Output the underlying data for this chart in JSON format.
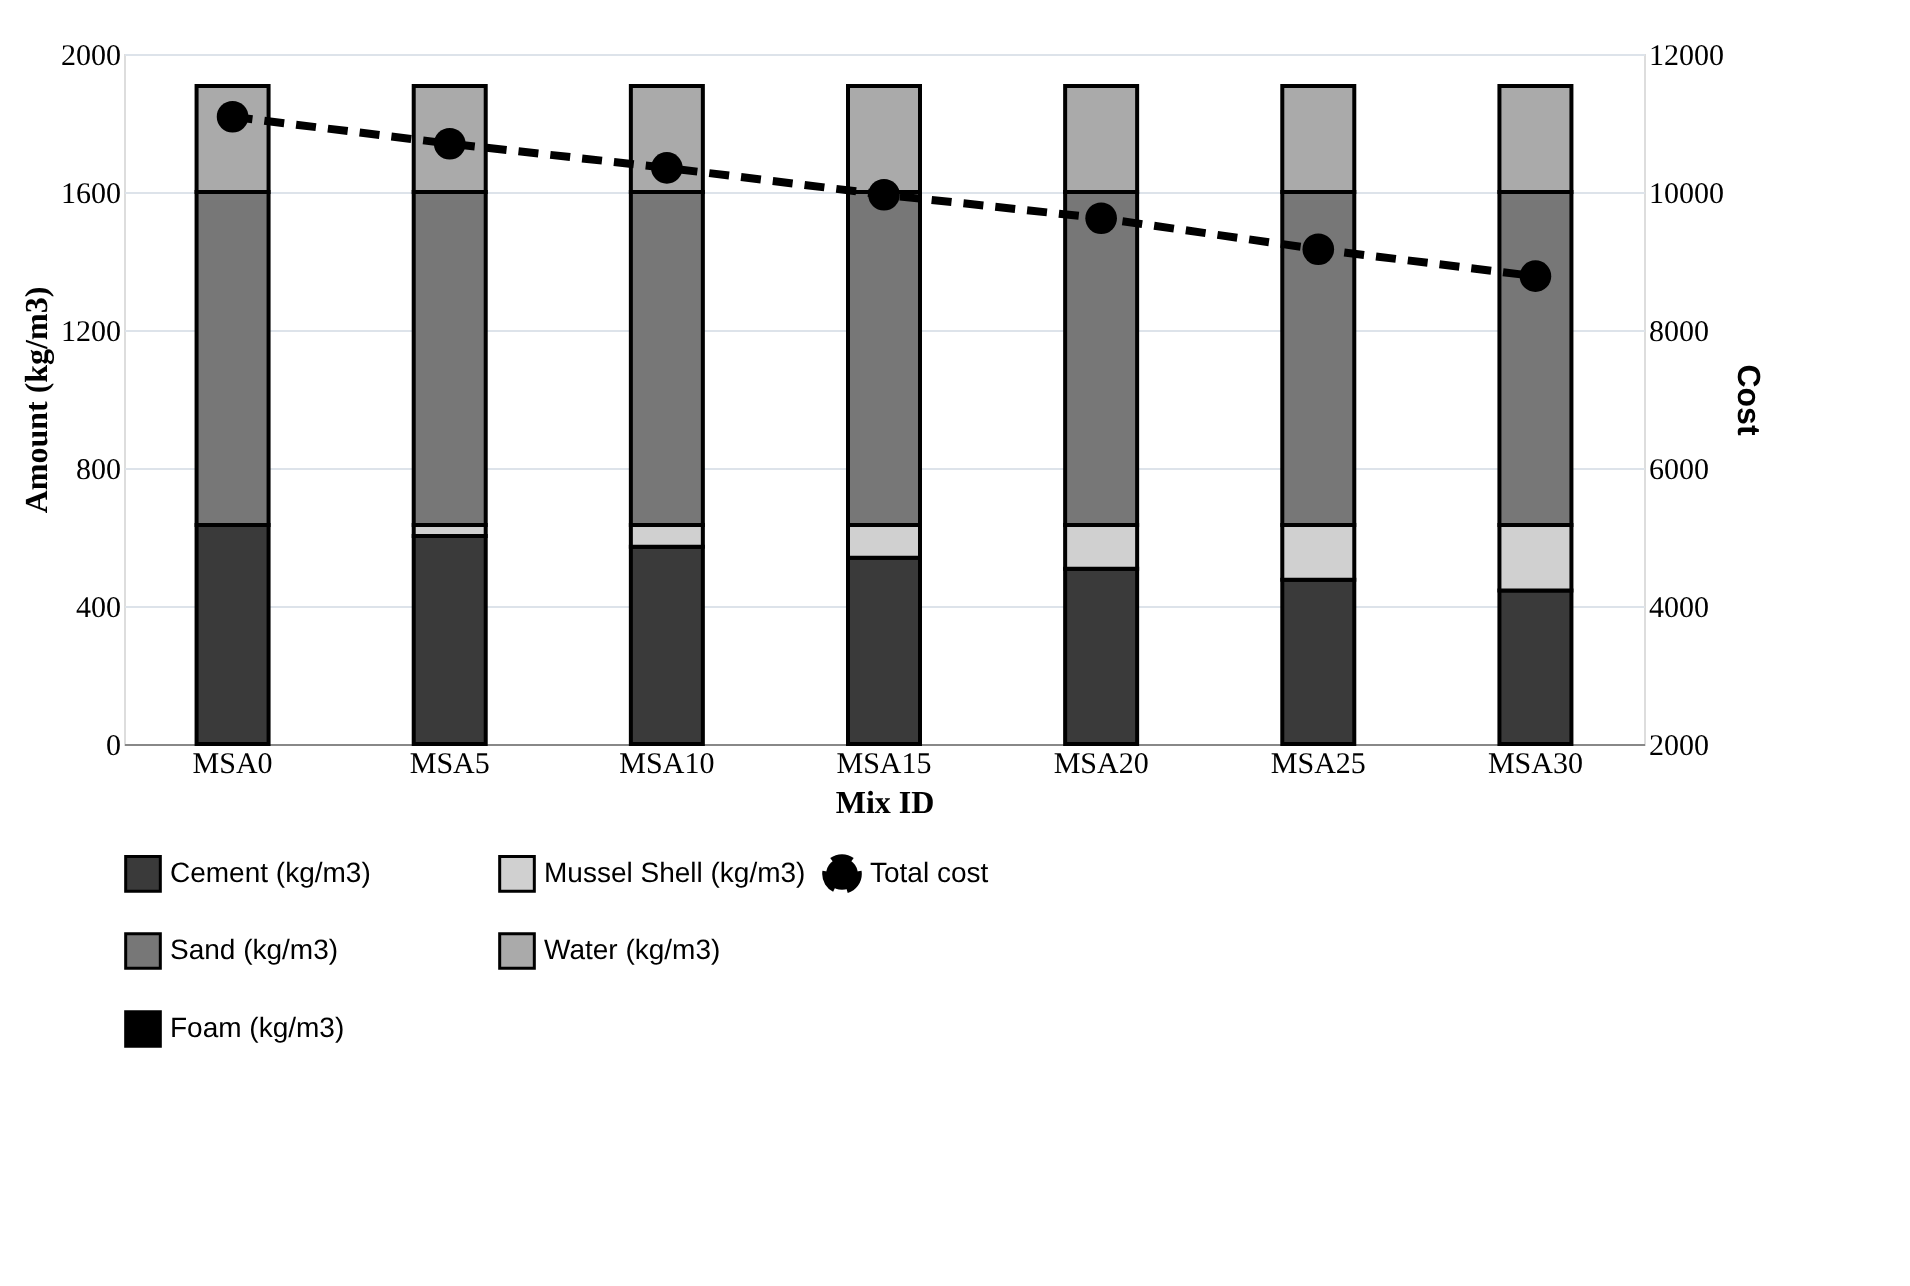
{
  "chart_data": {
    "type": "bar",
    "stacked": true,
    "categories": [
      "MSA0",
      "MSA5",
      "MSA10",
      "MSA15",
      "MSA20",
      "MSA25",
      "MSA30"
    ],
    "xlabel": "Mix ID",
    "ylabel": "Amount  (kg/m3)",
    "y2label": "Cost",
    "ylim": [
      0,
      2000
    ],
    "yticks": [
      0,
      400,
      800,
      {
        "value": 1200,
        "label": "1200"
      },
      {
        "value": 1600,
        "label": "1600"
      },
      {
        "value": 2000,
        "label": "2000"
      }
    ],
    "y2lim": [
      2000,
      12000
    ],
    "y2ticks": [
      {
        "value": 2000,
        "label": "2000"
      },
      {
        "value": 4000,
        "label": "4000"
      },
      {
        "value": 6000,
        "label": "6000"
      },
      {
        "value": 8000,
        "label": "8000"
      },
      {
        "value": 10000,
        "label": "10000"
      },
      {
        "value": 12000,
        "label": "12000"
      }
    ],
    "grid": "y",
    "legend": "bottom",
    "series": [
      {
        "name": "Cement (kg/m3)",
        "color": "#3a3a3a",
        "values": [
          635,
          603,
          572,
          540,
          508,
          476,
          445
        ]
      },
      {
        "name": "Mussel Shell (kg/m3)",
        "color": "#d0d0d0",
        "values": [
          0,
          32,
          63,
          95,
          127,
          159,
          190
        ]
      },
      {
        "name": "Sand (kg/m3)",
        "color": "#777777",
        "values": [
          965,
          965,
          965,
          965,
          965,
          965,
          965
        ]
      },
      {
        "name": "Water (kg/m3)",
        "color": "#aaaaaa",
        "values": [
          307,
          307,
          307,
          307,
          307,
          307,
          307
        ]
      },
      {
        "name": "Foam (kg/m3)",
        "color": "#000000",
        "values": [
          null,
          null,
          null,
          null,
          null,
          null,
          null
        ]
      },
      {
        "name": "Total cost",
        "color": "#000000",
        "type": "line",
        "axis": "y2",
        "marker": "circle",
        "line_style": "dashed",
        "values": [
          11090,
          10700,
          10350,
          9960,
          9620,
          9170,
          8780
        ]
      }
    ]
  }
}
